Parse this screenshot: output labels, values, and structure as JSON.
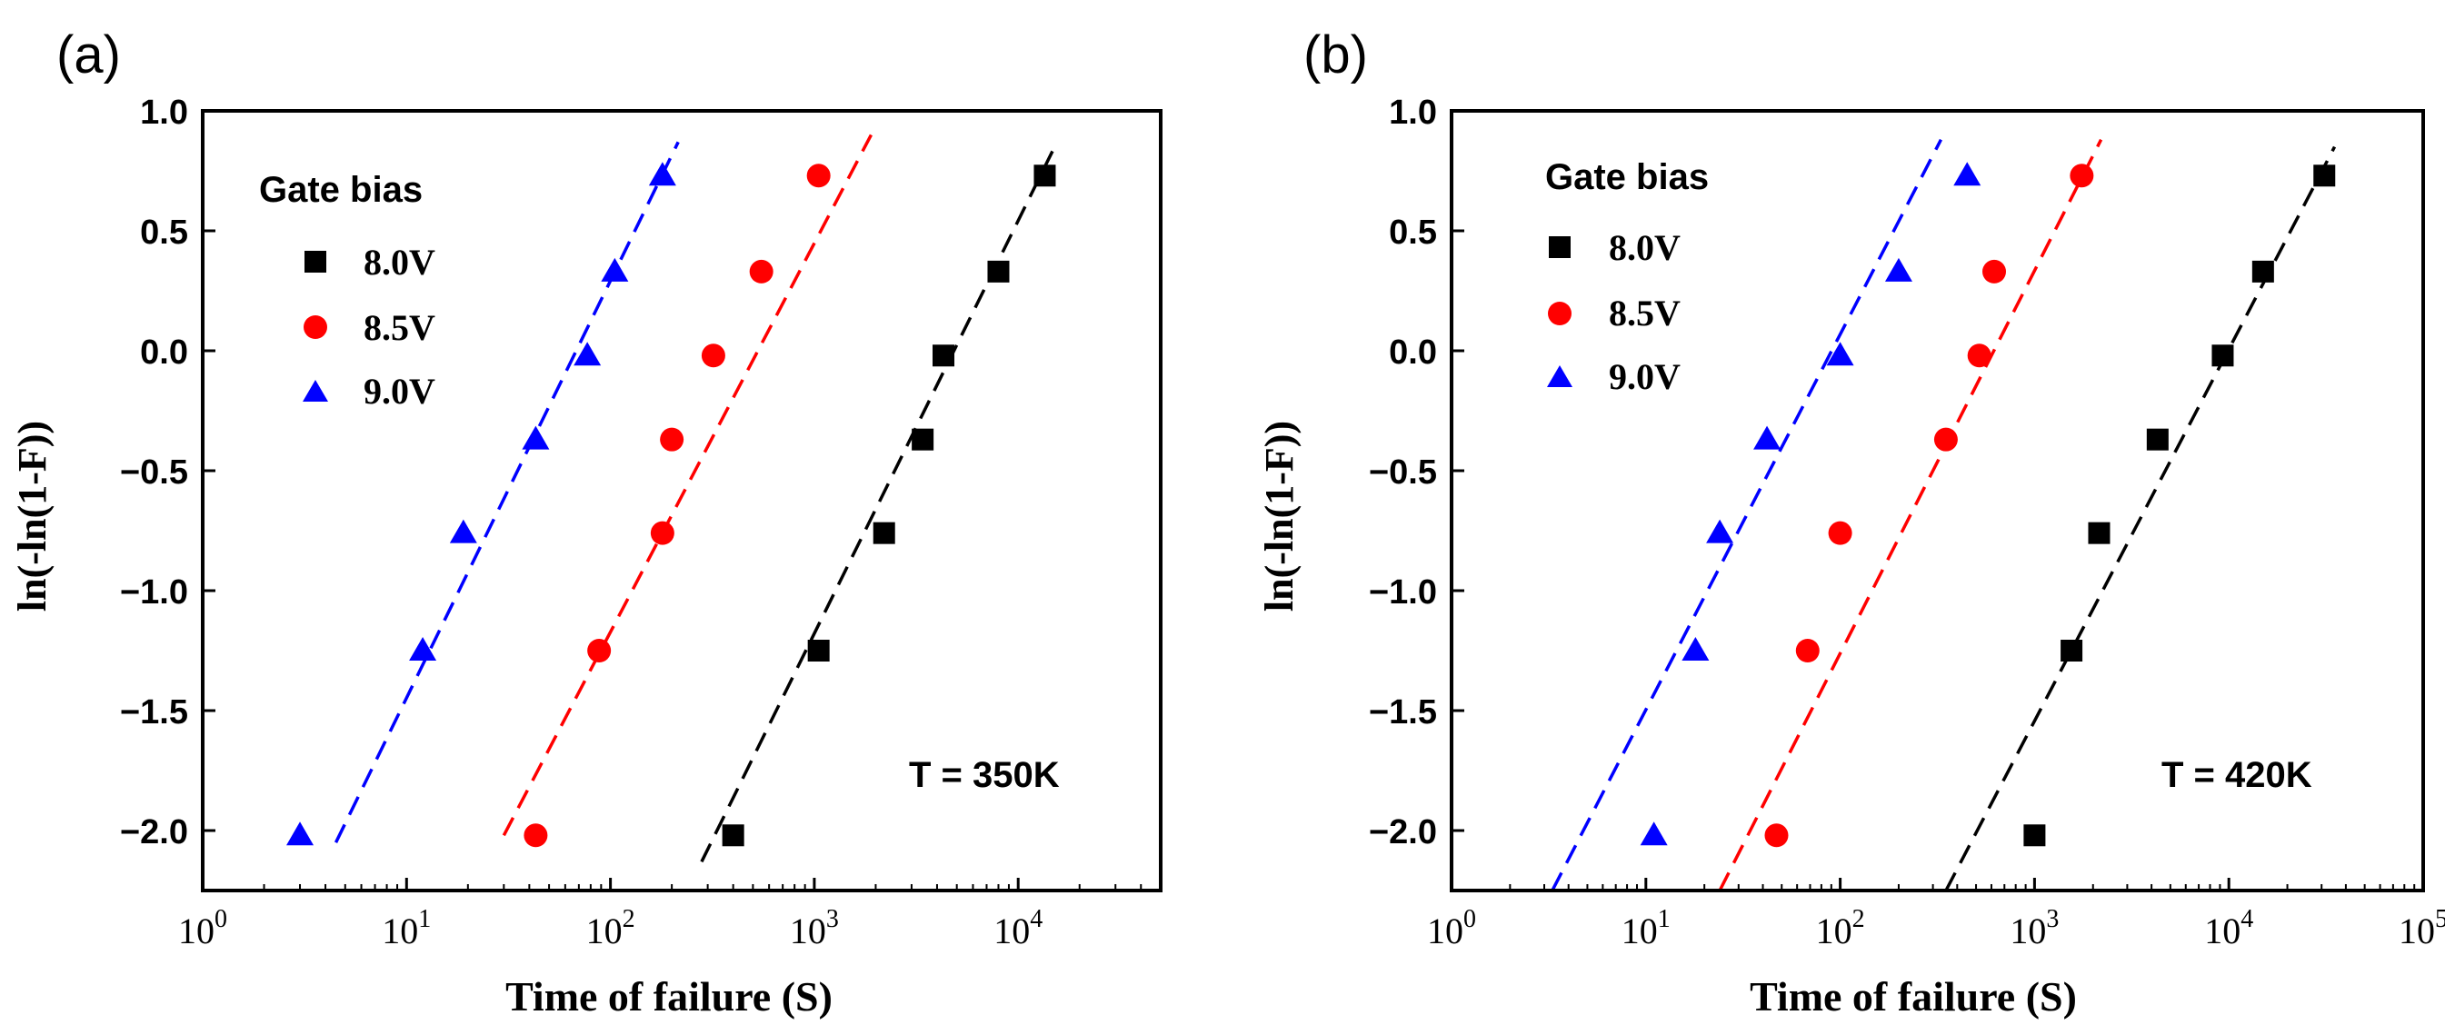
{
  "chart_data": [
    {
      "type": "scatter",
      "panel_label": "(a)",
      "xscale": "log",
      "xlim": [
        1,
        50000
      ],
      "ylim": [
        -2.25,
        1.0
      ],
      "xlabel": "Time of failure (S)",
      "ylabel": "ln(-ln(1-F))",
      "xticks": [
        {
          "value": 1,
          "base": "10",
          "exp": "0"
        },
        {
          "value": 10,
          "base": "10",
          "exp": "1"
        },
        {
          "value": 100,
          "base": "10",
          "exp": "2"
        },
        {
          "value": 1000,
          "base": "10",
          "exp": "3"
        },
        {
          "value": 10000,
          "base": "10",
          "exp": "4"
        }
      ],
      "yticks": [
        {
          "value": 1.0,
          "label": "1.0"
        },
        {
          "value": 0.5,
          "label": "0.5"
        },
        {
          "value": 0.0,
          "label": "0.0"
        },
        {
          "value": -0.5,
          "label": "−0.5"
        },
        {
          "value": -1.0,
          "label": "−1.0"
        },
        {
          "value": -1.5,
          "label": "−1.5"
        },
        {
          "value": -2.0,
          "label": "−2.0"
        }
      ],
      "legend_title": "Gate bias",
      "annotation": "T = 350K",
      "series": [
        {
          "name": "8.0V",
          "marker": "square",
          "color": "#000000",
          "x": [
            400,
            1050,
            2200,
            3400,
            4300,
            8000,
            13500
          ],
          "y": [
            -2.02,
            -1.25,
            -0.76,
            -0.37,
            -0.02,
            0.33,
            0.73
          ],
          "fit": {
            "x": [
              280,
              15500
            ],
            "y": [
              -2.13,
              0.87
            ]
          }
        },
        {
          "name": "8.5V",
          "marker": "circle",
          "color": "#ff0000",
          "x": [
            43,
            88,
            180,
            200,
            320,
            550,
            1050
          ],
          "y": [
            -2.02,
            -1.25,
            -0.76,
            -0.37,
            -0.02,
            0.33,
            0.73
          ],
          "fit": {
            "x": [
              30,
              1900
            ],
            "y": [
              -2.02,
              0.9
            ]
          }
        },
        {
          "name": "9.0V",
          "marker": "triangle",
          "color": "#0000ff",
          "x": [
            3,
            12,
            19,
            43,
            77,
            105,
            180
          ],
          "y": [
            -2.02,
            -1.25,
            -0.76,
            -0.37,
            -0.02,
            0.33,
            0.73
          ],
          "fit": {
            "x": [
              4.5,
              215
            ],
            "y": [
              -2.05,
              0.87
            ]
          }
        }
      ]
    },
    {
      "type": "scatter",
      "panel_label": "(b)",
      "xscale": "log",
      "xlim": [
        1,
        100000
      ],
      "ylim": [
        -2.25,
        1.0
      ],
      "xlabel": "Time of failure (S)",
      "ylabel": "ln(-ln(1-F))",
      "xticks": [
        {
          "value": 1,
          "base": "10",
          "exp": "0"
        },
        {
          "value": 10,
          "base": "10",
          "exp": "1"
        },
        {
          "value": 100,
          "base": "10",
          "exp": "2"
        },
        {
          "value": 1000,
          "base": "10",
          "exp": "3"
        },
        {
          "value": 10000,
          "base": "10",
          "exp": "4"
        },
        {
          "value": 100000,
          "base": "10",
          "exp": "5"
        }
      ],
      "yticks": [
        {
          "value": 1.0,
          "label": "1.0"
        },
        {
          "value": 0.5,
          "label": "0.5"
        },
        {
          "value": 0.0,
          "label": "0.0"
        },
        {
          "value": -0.5,
          "label": "−0.5"
        },
        {
          "value": -1.0,
          "label": "−1.0"
        },
        {
          "value": -1.5,
          "label": "−1.5"
        },
        {
          "value": -2.0,
          "label": "−2.0"
        }
      ],
      "legend_title": "Gate bias",
      "annotation": "T = 420K",
      "series": [
        {
          "name": "8.0V",
          "marker": "square",
          "color": "#000000",
          "x": [
            1000,
            1550,
            2150,
            4300,
            9300,
            15000,
            31000
          ],
          "y": [
            -2.02,
            -1.25,
            -0.76,
            -0.37,
            -0.02,
            0.33,
            0.73
          ],
          "fit": {
            "x": [
              350,
              35000
            ],
            "y": [
              -2.25,
              0.85
            ]
          }
        },
        {
          "name": "8.5V",
          "marker": "circle",
          "color": "#ff0000",
          "x": [
            47,
            68,
            100,
            350,
            520,
            620,
            1750
          ],
          "y": [
            -2.02,
            -1.25,
            -0.76,
            -0.37,
            -0.02,
            0.33,
            0.73
          ],
          "fit": {
            "x": [
              24,
              2200
            ],
            "y": [
              -2.25,
              0.88
            ]
          }
        },
        {
          "name": "9.0V",
          "marker": "triangle",
          "color": "#0000ff",
          "x": [
            11,
            18,
            24,
            42,
            100,
            200,
            450
          ],
          "y": [
            -2.02,
            -1.25,
            -0.76,
            -0.37,
            -0.02,
            0.33,
            0.73
          ],
          "fit": {
            "x": [
              3.3,
              330
            ],
            "y": [
              -2.25,
              0.88
            ]
          }
        }
      ]
    }
  ]
}
